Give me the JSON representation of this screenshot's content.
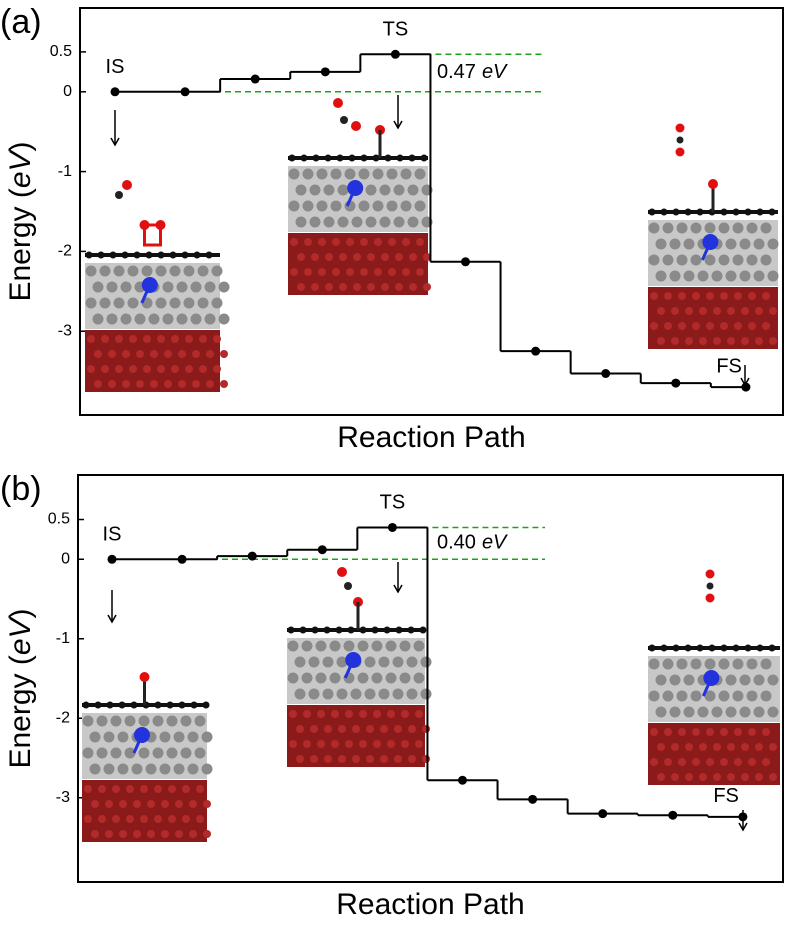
{
  "chart_data": [
    {
      "type": "line",
      "step": true,
      "panel_label": "(a)",
      "y_label": [
        "Energy (",
        "eV",
        ")"
      ],
      "x_label": "Reaction Path",
      "categories": [
        null,
        null,
        null,
        null,
        null,
        null,
        null,
        null,
        null,
        null
      ],
      "values": [
        0,
        0,
        0.16,
        0.25,
        0.47,
        -2.13,
        -3.25,
        -3.53,
        -3.65,
        -3.7
      ],
      "color": "#000000",
      "reference_color": "#1aa31a",
      "ylim": [
        -4.05,
        1.05
      ],
      "yticks": [
        0.5,
        0,
        -1,
        -2,
        -3
      ],
      "point_labels": [
        {
          "index": 0,
          "text": "IS"
        },
        {
          "index": 4,
          "text": "TS"
        },
        {
          "index": 9,
          "text": "FS"
        }
      ],
      "annotation": {
        "text": "0.47",
        "unit": "eV"
      }
    },
    {
      "type": "line",
      "step": true,
      "panel_label": "(b)",
      "y_label": [
        "Energy (",
        "eV",
        ")"
      ],
      "x_label": "Reaction Path",
      "categories": [
        null,
        null,
        null,
        null,
        null,
        null,
        null,
        null,
        null,
        null
      ],
      "values": [
        0,
        0,
        0.04,
        0.12,
        0.4,
        -2.78,
        -3.02,
        -3.2,
        -3.22,
        -3.24
      ],
      "color": "#000000",
      "reference_color": "#1aa31a",
      "ylim": [
        -4.06,
        1.06
      ],
      "yticks": [
        0.5,
        0,
        -1,
        -2,
        -3
      ],
      "point_labels": [
        {
          "index": 0,
          "text": "IS"
        },
        {
          "index": 4,
          "text": "TS"
        },
        {
          "index": 9,
          "text": "FS"
        }
      ],
      "annotation": {
        "text": "0.40",
        "unit": "eV"
      }
    }
  ]
}
